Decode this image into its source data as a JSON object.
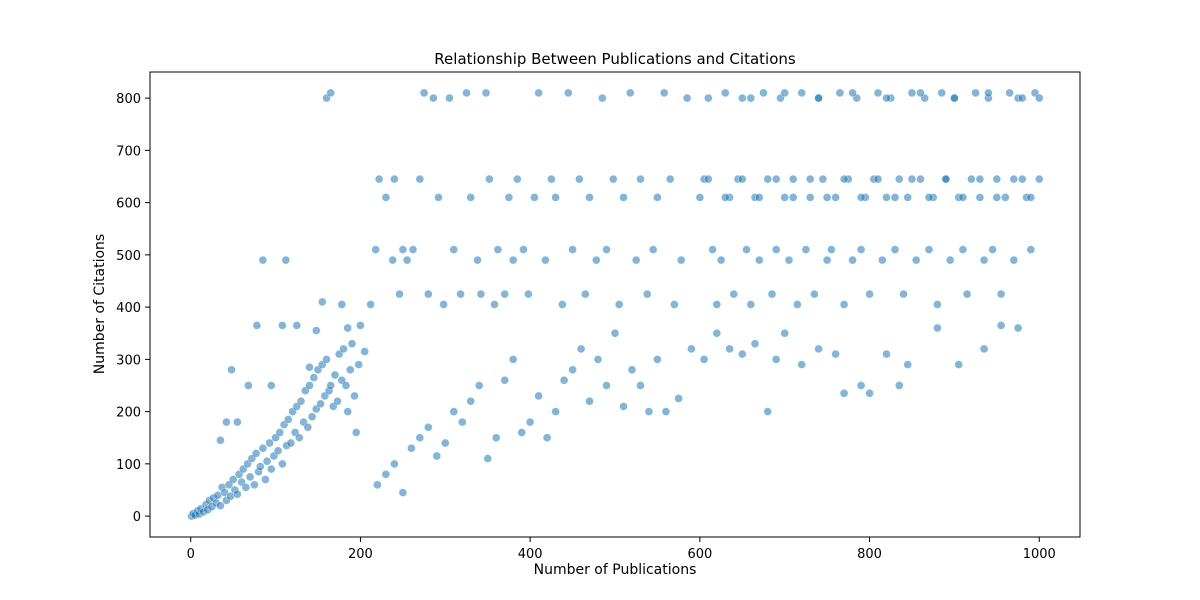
{
  "chart_data": {
    "type": "scatter",
    "title": "Relationship Between Publications and Citations",
    "xlabel": "Number of Publications",
    "ylabel": "Number of Citations",
    "xlim": [
      -48,
      1048
    ],
    "ylim": [
      -40,
      850
    ],
    "xticks": [
      0,
      200,
      400,
      600,
      800,
      1000
    ],
    "yticks": [
      0,
      100,
      200,
      300,
      400,
      500,
      600,
      700,
      800
    ],
    "grid": false,
    "marker_color": "#1f77b4",
    "marker_alpha": 0.55,
    "series": [
      {
        "points": [
          [
            1,
            0
          ],
          [
            3,
            5
          ],
          [
            5,
            2
          ],
          [
            8,
            10
          ],
          [
            10,
            4
          ],
          [
            12,
            14
          ],
          [
            15,
            8
          ],
          [
            18,
            22
          ],
          [
            20,
            12
          ],
          [
            22,
            30
          ],
          [
            25,
            18
          ],
          [
            27,
            35
          ],
          [
            30,
            25
          ],
          [
            32,
            40
          ],
          [
            35,
            20
          ],
          [
            37,
            55
          ],
          [
            40,
            45
          ],
          [
            42,
            30
          ],
          [
            45,
            60
          ],
          [
            47,
            38
          ],
          [
            50,
            70
          ],
          [
            52,
            50
          ],
          [
            55,
            42
          ],
          [
            57,
            80
          ],
          [
            60,
            65
          ],
          [
            62,
            90
          ],
          [
            65,
            55
          ],
          [
            67,
            100
          ],
          [
            70,
            75
          ],
          [
            72,
            110
          ],
          [
            75,
            60
          ],
          [
            77,
            120
          ],
          [
            80,
            85
          ],
          [
            82,
            95
          ],
          [
            85,
            130
          ],
          [
            88,
            70
          ],
          [
            90,
            105
          ],
          [
            93,
            140
          ],
          [
            95,
            90
          ],
          [
            98,
            115
          ],
          [
            100,
            150
          ],
          [
            103,
            125
          ],
          [
            105,
            160
          ],
          [
            108,
            100
          ],
          [
            110,
            175
          ],
          [
            113,
            135
          ],
          [
            115,
            185
          ],
          [
            118,
            140
          ],
          [
            120,
            200
          ],
          [
            123,
            160
          ],
          [
            125,
            210
          ],
          [
            128,
            150
          ],
          [
            130,
            220
          ],
          [
            133,
            180
          ],
          [
            135,
            240
          ],
          [
            138,
            170
          ],
          [
            140,
            250
          ],
          [
            143,
            190
          ],
          [
            145,
            265
          ],
          [
            148,
            205
          ],
          [
            150,
            280
          ],
          [
            153,
            215
          ],
          [
            155,
            290
          ],
          [
            158,
            230
          ],
          [
            160,
            300
          ],
          [
            163,
            240
          ],
          [
            165,
            250
          ],
          [
            168,
            210
          ],
          [
            170,
            270
          ],
          [
            173,
            220
          ],
          [
            175,
            310
          ],
          [
            178,
            260
          ],
          [
            180,
            320
          ],
          [
            183,
            250
          ],
          [
            185,
            200
          ],
          [
            188,
            280
          ],
          [
            190,
            330
          ],
          [
            193,
            230
          ],
          [
            195,
            160
          ],
          [
            198,
            290
          ],
          [
            35,
            145
          ],
          [
            42,
            180
          ],
          [
            48,
            280
          ],
          [
            55,
            180
          ],
          [
            68,
            250
          ],
          [
            78,
            365
          ],
          [
            85,
            490
          ],
          [
            95,
            250
          ],
          [
            108,
            365
          ],
          [
            112,
            490
          ],
          [
            125,
            365
          ],
          [
            140,
            285
          ],
          [
            148,
            355
          ],
          [
            155,
            410
          ],
          [
            160,
            800
          ],
          [
            165,
            810
          ],
          [
            178,
            405
          ],
          [
            185,
            360
          ],
          [
            200,
            365
          ],
          [
            205,
            315
          ],
          [
            212,
            405
          ],
          [
            218,
            510
          ],
          [
            222,
            645
          ],
          [
            230,
            610
          ],
          [
            238,
            490
          ],
          [
            240,
            645
          ],
          [
            246,
            425
          ],
          [
            250,
            510
          ],
          [
            255,
            490
          ],
          [
            262,
            510
          ],
          [
            270,
            645
          ],
          [
            275,
            810
          ],
          [
            280,
            425
          ],
          [
            286,
            800
          ],
          [
            292,
            610
          ],
          [
            298,
            405
          ],
          [
            305,
            800
          ],
          [
            310,
            510
          ],
          [
            318,
            425
          ],
          [
            325,
            810
          ],
          [
            330,
            610
          ],
          [
            338,
            490
          ],
          [
            342,
            425
          ],
          [
            348,
            810
          ],
          [
            352,
            645
          ],
          [
            358,
            405
          ],
          [
            362,
            510
          ],
          [
            370,
            425
          ],
          [
            375,
            610
          ],
          [
            380,
            490
          ],
          [
            385,
            645
          ],
          [
            392,
            510
          ],
          [
            398,
            425
          ],
          [
            405,
            610
          ],
          [
            410,
            810
          ],
          [
            418,
            490
          ],
          [
            425,
            645
          ],
          [
            430,
            610
          ],
          [
            438,
            405
          ],
          [
            445,
            810
          ],
          [
            450,
            510
          ],
          [
            458,
            645
          ],
          [
            465,
            425
          ],
          [
            470,
            610
          ],
          [
            478,
            490
          ],
          [
            485,
            800
          ],
          [
            490,
            510
          ],
          [
            498,
            645
          ],
          [
            505,
            405
          ],
          [
            510,
            610
          ],
          [
            518,
            810
          ],
          [
            525,
            490
          ],
          [
            530,
            645
          ],
          [
            538,
            425
          ],
          [
            545,
            510
          ],
          [
            550,
            610
          ],
          [
            558,
            810
          ],
          [
            565,
            645
          ],
          [
            570,
            405
          ],
          [
            578,
            490
          ],
          [
            585,
            800
          ],
          [
            220,
            60
          ],
          [
            230,
            80
          ],
          [
            240,
            100
          ],
          [
            250,
            45
          ],
          [
            260,
            130
          ],
          [
            270,
            150
          ],
          [
            280,
            170
          ],
          [
            290,
            115
          ],
          [
            300,
            140
          ],
          [
            310,
            200
          ],
          [
            320,
            180
          ],
          [
            330,
            220
          ],
          [
            340,
            250
          ],
          [
            350,
            110
          ],
          [
            360,
            150
          ],
          [
            370,
            260
          ],
          [
            380,
            300
          ],
          [
            390,
            160
          ],
          [
            400,
            180
          ],
          [
            410,
            230
          ],
          [
            420,
            150
          ],
          [
            430,
            200
          ],
          [
            440,
            260
          ],
          [
            450,
            280
          ],
          [
            460,
            320
          ],
          [
            470,
            220
          ],
          [
            480,
            300
          ],
          [
            490,
            250
          ],
          [
            500,
            350
          ],
          [
            510,
            210
          ],
          [
            520,
            280
          ],
          [
            530,
            250
          ],
          [
            540,
            200
          ],
          [
            550,
            300
          ],
          [
            560,
            200
          ],
          [
            575,
            225
          ],
          [
            590,
            320
          ],
          [
            605,
            300
          ],
          [
            620,
            350
          ],
          [
            635,
            320
          ],
          [
            650,
            310
          ],
          [
            665,
            330
          ],
          [
            680,
            200
          ],
          [
            690,
            300
          ],
          [
            700,
            350
          ],
          [
            720,
            290
          ],
          [
            740,
            320
          ],
          [
            760,
            310
          ],
          [
            770,
            235
          ],
          [
            790,
            250
          ],
          [
            800,
            235
          ],
          [
            820,
            310
          ],
          [
            835,
            250
          ],
          [
            845,
            290
          ],
          [
            880,
            360
          ],
          [
            905,
            290
          ],
          [
            935,
            320
          ],
          [
            955,
            365
          ],
          [
            975,
            360
          ],
          [
            600,
            610
          ],
          [
            605,
            645
          ],
          [
            610,
            800
          ],
          [
            615,
            510
          ],
          [
            620,
            405
          ],
          [
            625,
            490
          ],
          [
            630,
            810
          ],
          [
            635,
            610
          ],
          [
            640,
            425
          ],
          [
            645,
            645
          ],
          [
            650,
            800
          ],
          [
            655,
            510
          ],
          [
            660,
            405
          ],
          [
            665,
            610
          ],
          [
            670,
            490
          ],
          [
            675,
            810
          ],
          [
            680,
            645
          ],
          [
            685,
            425
          ],
          [
            690,
            510
          ],
          [
            695,
            800
          ],
          [
            700,
            610
          ],
          [
            705,
            490
          ],
          [
            710,
            645
          ],
          [
            715,
            405
          ],
          [
            720,
            810
          ],
          [
            725,
            510
          ],
          [
            730,
            610
          ],
          [
            735,
            425
          ],
          [
            740,
            800
          ],
          [
            745,
            645
          ],
          [
            750,
            490
          ],
          [
            755,
            510
          ],
          [
            760,
            610
          ],
          [
            765,
            810
          ],
          [
            770,
            405
          ],
          [
            775,
            645
          ],
          [
            780,
            490
          ],
          [
            785,
            800
          ],
          [
            790,
            510
          ],
          [
            795,
            610
          ],
          [
            800,
            425
          ],
          [
            805,
            645
          ],
          [
            810,
            810
          ],
          [
            815,
            490
          ],
          [
            820,
            610
          ],
          [
            825,
            800
          ],
          [
            830,
            510
          ],
          [
            835,
            645
          ],
          [
            840,
            425
          ],
          [
            845,
            610
          ],
          [
            850,
            810
          ],
          [
            855,
            490
          ],
          [
            860,
            645
          ],
          [
            865,
            800
          ],
          [
            870,
            510
          ],
          [
            875,
            610
          ],
          [
            880,
            405
          ],
          [
            885,
            810
          ],
          [
            890,
            645
          ],
          [
            895,
            490
          ],
          [
            900,
            800
          ],
          [
            905,
            610
          ],
          [
            910,
            510
          ],
          [
            915,
            425
          ],
          [
            920,
            645
          ],
          [
            925,
            810
          ],
          [
            930,
            610
          ],
          [
            935,
            490
          ],
          [
            940,
            800
          ],
          [
            945,
            510
          ],
          [
            950,
            645
          ],
          [
            955,
            425
          ],
          [
            960,
            610
          ],
          [
            965,
            810
          ],
          [
            970,
            490
          ],
          [
            975,
            800
          ],
          [
            980,
            645
          ],
          [
            985,
            610
          ],
          [
            990,
            510
          ],
          [
            995,
            810
          ],
          [
            1000,
            800
          ],
          [
            660,
            800
          ],
          [
            700,
            810
          ],
          [
            740,
            800
          ],
          [
            780,
            810
          ],
          [
            820,
            800
          ],
          [
            860,
            810
          ],
          [
            900,
            800
          ],
          [
            940,
            810
          ],
          [
            980,
            800
          ],
          [
            1000,
            645
          ],
          [
            990,
            610
          ],
          [
            970,
            645
          ],
          [
            950,
            610
          ],
          [
            930,
            645
          ],
          [
            910,
            610
          ],
          [
            890,
            645
          ],
          [
            870,
            610
          ],
          [
            850,
            645
          ],
          [
            830,
            610
          ],
          [
            810,
            645
          ],
          [
            790,
            610
          ],
          [
            770,
            645
          ],
          [
            750,
            610
          ],
          [
            730,
            645
          ],
          [
            710,
            610
          ],
          [
            690,
            645
          ],
          [
            670,
            610
          ],
          [
            650,
            645
          ],
          [
            630,
            610
          ],
          [
            610,
            645
          ]
        ]
      }
    ]
  }
}
